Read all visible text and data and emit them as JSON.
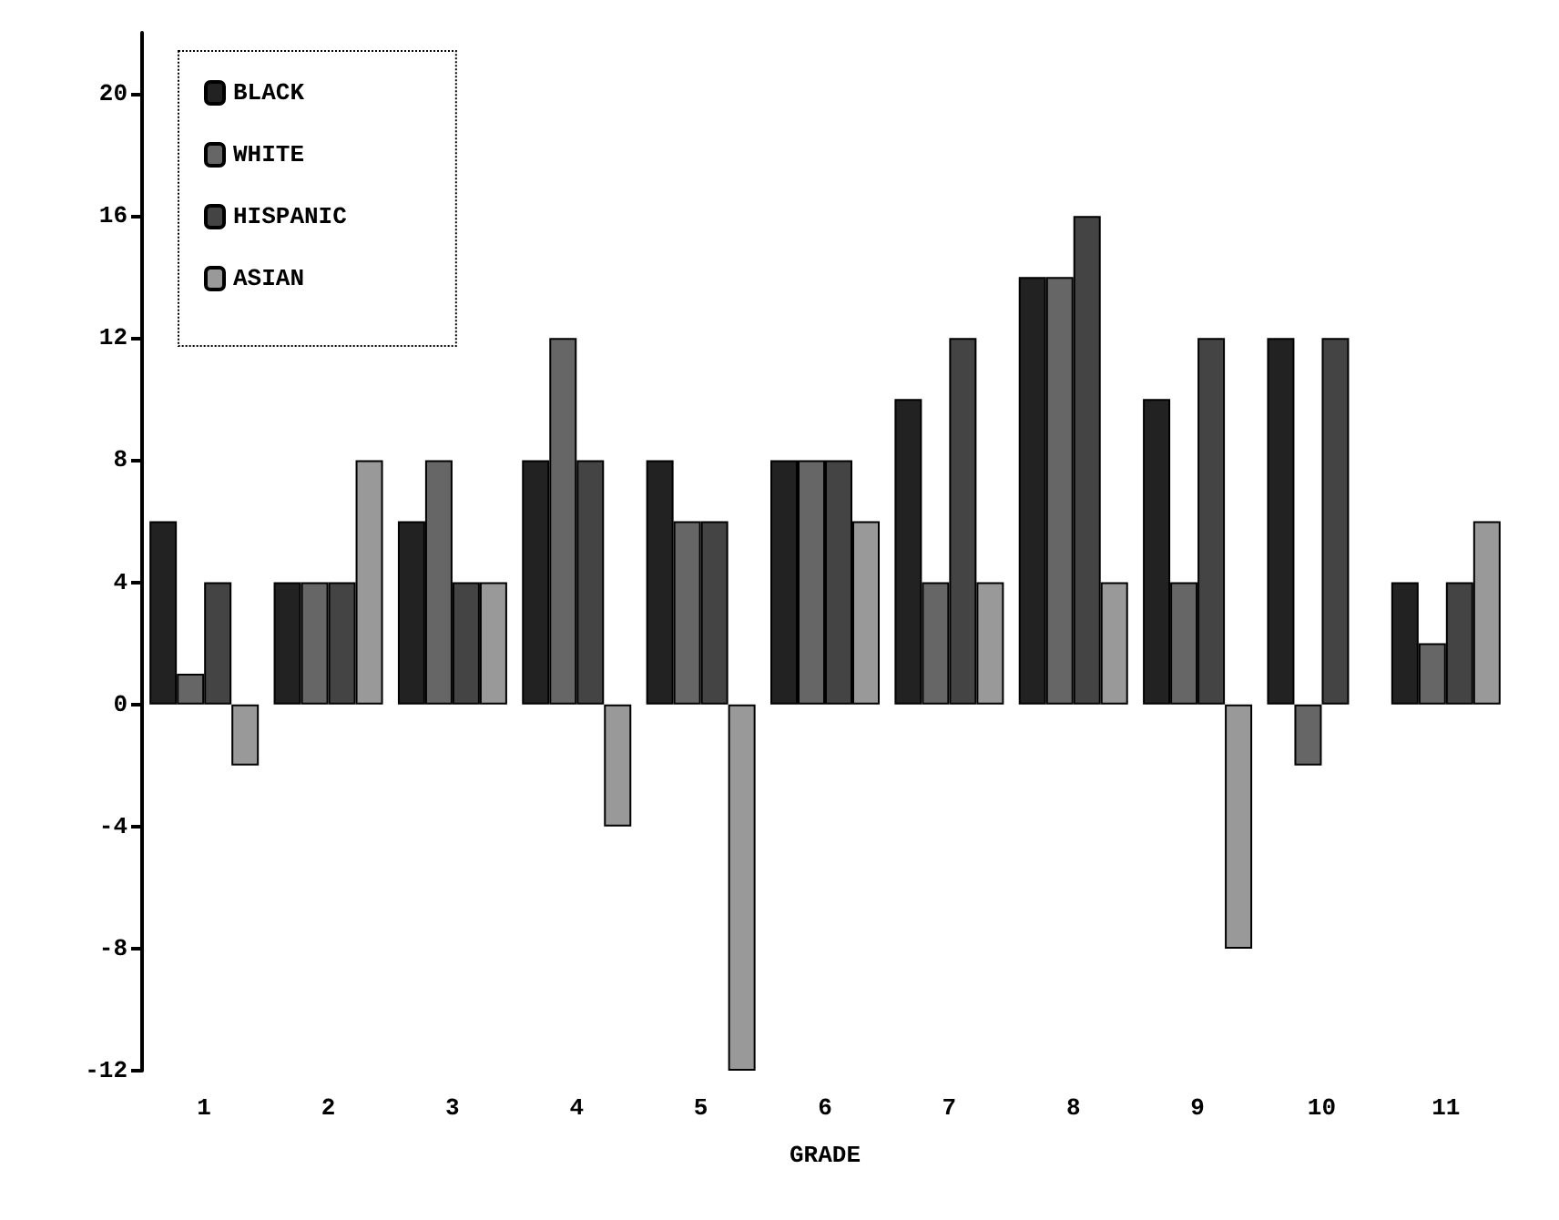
{
  "chart_data": {
    "type": "bar",
    "xlabel": "GRADE",
    "categories": [
      "1",
      "2",
      "3",
      "4",
      "5",
      "6",
      "7",
      "8",
      "9",
      "10",
      "11"
    ],
    "series": [
      {
        "name": "BLACK",
        "color": "#222222",
        "values": [
          6,
          4,
          6,
          8,
          8,
          8,
          10,
          14,
          10,
          12,
          4
        ]
      },
      {
        "name": "WHITE",
        "color": "#666666",
        "values": [
          1,
          4,
          8,
          12,
          6,
          8,
          4,
          14,
          4,
          -2,
          2
        ]
      },
      {
        "name": "HISPANIC",
        "color": "#444444",
        "values": [
          4,
          4,
          4,
          8,
          6,
          8,
          12,
          16,
          12,
          12,
          4
        ]
      },
      {
        "name": "ASIAN",
        "color": "#999999",
        "values": [
          -2,
          8,
          4,
          -4,
          -12,
          6,
          4,
          4,
          -8,
          null,
          6
        ]
      }
    ],
    "ylim": [
      -12,
      22
    ],
    "yticks": [
      -12,
      -8,
      -4,
      0,
      4,
      8,
      12,
      16,
      20
    ],
    "grid": false,
    "legend": "top left"
  }
}
